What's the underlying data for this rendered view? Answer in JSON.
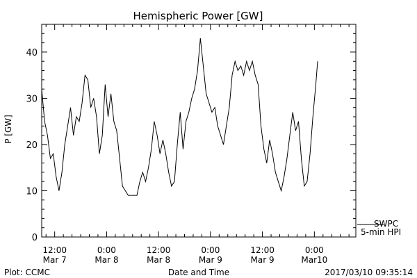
{
  "chart_data": {
    "type": "line",
    "title": "Hemispheric Power [GW]",
    "ylabel": "P [GW]",
    "xlabel": "Date and Time",
    "ylim": [
      0,
      46
    ],
    "xlim": [
      "2017-03-07 09:00",
      "2017-03-10 09:35"
    ],
    "grid": false,
    "yticks": [
      0,
      10,
      20,
      30,
      40
    ],
    "xticks": [
      {
        "time": "2017-03-07 12:00",
        "line1": "12:00",
        "line2": "Mar 7"
      },
      {
        "time": "2017-03-08 00:00",
        "line1": "0:00",
        "line2": "Mar 8"
      },
      {
        "time": "2017-03-08 12:00",
        "line1": "12:00",
        "line2": "Mar 8"
      },
      {
        "time": "2017-03-09 00:00",
        "line1": "0:00",
        "line2": "Mar 9"
      },
      {
        "time": "2017-03-09 12:00",
        "line1": "12:00",
        "line2": "Mar 9"
      },
      {
        "time": "2017-03-10 00:00",
        "line1": "0:00",
        "line2": "Mar10"
      }
    ],
    "series": [
      {
        "name": "SWPC 5-min HPI",
        "color": "#000000",
        "points": [
          [
            "2017-03-07 09:00",
            32
          ],
          [
            "2017-03-07 09:40",
            25
          ],
          [
            "2017-03-07 10:20",
            22
          ],
          [
            "2017-03-07 11:00",
            17
          ],
          [
            "2017-03-07 11:40",
            18
          ],
          [
            "2017-03-07 12:20",
            13
          ],
          [
            "2017-03-07 13:00",
            10
          ],
          [
            "2017-03-07 13:40",
            14
          ],
          [
            "2017-03-07 14:20",
            20
          ],
          [
            "2017-03-07 15:00",
            24
          ],
          [
            "2017-03-07 15:40",
            28
          ],
          [
            "2017-03-07 16:20",
            22
          ],
          [
            "2017-03-07 17:00",
            26
          ],
          [
            "2017-03-07 17:40",
            25
          ],
          [
            "2017-03-07 18:20",
            29
          ],
          [
            "2017-03-07 19:00",
            35
          ],
          [
            "2017-03-07 19:40",
            34
          ],
          [
            "2017-03-07 20:20",
            28
          ],
          [
            "2017-03-07 21:00",
            30
          ],
          [
            "2017-03-07 21:40",
            26
          ],
          [
            "2017-03-07 22:20",
            18
          ],
          [
            "2017-03-07 23:00",
            22
          ],
          [
            "2017-03-07 23:40",
            33
          ],
          [
            "2017-03-08 00:20",
            26
          ],
          [
            "2017-03-08 01:00",
            31
          ],
          [
            "2017-03-08 01:40",
            25
          ],
          [
            "2017-03-08 02:20",
            23
          ],
          [
            "2017-03-08 03:00",
            17
          ],
          [
            "2017-03-08 03:40",
            11
          ],
          [
            "2017-03-08 04:20",
            10
          ],
          [
            "2017-03-08 05:00",
            9
          ],
          [
            "2017-03-08 06:00",
            9
          ],
          [
            "2017-03-08 07:00",
            9
          ],
          [
            "2017-03-08 07:40",
            12
          ],
          [
            "2017-03-08 08:20",
            14
          ],
          [
            "2017-03-08 09:00",
            12
          ],
          [
            "2017-03-08 09:40",
            15
          ],
          [
            "2017-03-08 10:20",
            19
          ],
          [
            "2017-03-08 11:00",
            25
          ],
          [
            "2017-03-08 11:40",
            22
          ],
          [
            "2017-03-08 12:20",
            18
          ],
          [
            "2017-03-08 13:00",
            21
          ],
          [
            "2017-03-08 13:40",
            18
          ],
          [
            "2017-03-08 14:20",
            14
          ],
          [
            "2017-03-08 15:00",
            11
          ],
          [
            "2017-03-08 15:40",
            12
          ],
          [
            "2017-03-08 16:20",
            20
          ],
          [
            "2017-03-08 17:00",
            27
          ],
          [
            "2017-03-08 17:40",
            19
          ],
          [
            "2017-03-08 18:20",
            25
          ],
          [
            "2017-03-08 19:00",
            27
          ],
          [
            "2017-03-08 19:40",
            30
          ],
          [
            "2017-03-08 20:20",
            32
          ],
          [
            "2017-03-08 21:00",
            36
          ],
          [
            "2017-03-08 21:40",
            43
          ],
          [
            "2017-03-08 22:20",
            37
          ],
          [
            "2017-03-08 23:00",
            31
          ],
          [
            "2017-03-08 23:40",
            29
          ],
          [
            "2017-03-09 00:20",
            27
          ],
          [
            "2017-03-09 01:00",
            28
          ],
          [
            "2017-03-09 01:40",
            24
          ],
          [
            "2017-03-09 02:20",
            22
          ],
          [
            "2017-03-09 03:00",
            20
          ],
          [
            "2017-03-09 03:40",
            24
          ],
          [
            "2017-03-09 04:20",
            28
          ],
          [
            "2017-03-09 05:00",
            35
          ],
          [
            "2017-03-09 05:40",
            38
          ],
          [
            "2017-03-09 06:20",
            36
          ],
          [
            "2017-03-09 07:00",
            37
          ],
          [
            "2017-03-09 07:40",
            35
          ],
          [
            "2017-03-09 08:20",
            38
          ],
          [
            "2017-03-09 09:00",
            36
          ],
          [
            "2017-03-09 09:40",
            38
          ],
          [
            "2017-03-09 10:20",
            35
          ],
          [
            "2017-03-09 11:00",
            33
          ],
          [
            "2017-03-09 11:40",
            24
          ],
          [
            "2017-03-09 12:20",
            19
          ],
          [
            "2017-03-09 13:00",
            16
          ],
          [
            "2017-03-09 13:40",
            21
          ],
          [
            "2017-03-09 14:20",
            18
          ],
          [
            "2017-03-09 15:00",
            14
          ],
          [
            "2017-03-09 15:40",
            12
          ],
          [
            "2017-03-09 16:20",
            10
          ],
          [
            "2017-03-09 17:00",
            13
          ],
          [
            "2017-03-09 17:40",
            17
          ],
          [
            "2017-03-09 18:20",
            22
          ],
          [
            "2017-03-09 19:00",
            27
          ],
          [
            "2017-03-09 19:40",
            23
          ],
          [
            "2017-03-09 20:20",
            25
          ],
          [
            "2017-03-09 21:00",
            17
          ],
          [
            "2017-03-09 21:40",
            11
          ],
          [
            "2017-03-09 22:20",
            12
          ],
          [
            "2017-03-09 23:00",
            18
          ],
          [
            "2017-03-09 23:40",
            26
          ],
          [
            "2017-03-10 00:20",
            33
          ],
          [
            "2017-03-10 00:45",
            38
          ]
        ]
      }
    ]
  },
  "legend": {
    "line1": "SWPC",
    "line2": "5-min HPI"
  },
  "footer": {
    "left": "Plot: CCMC",
    "center": "Date and Time",
    "right": "2017/03/10 09:35:14"
  }
}
